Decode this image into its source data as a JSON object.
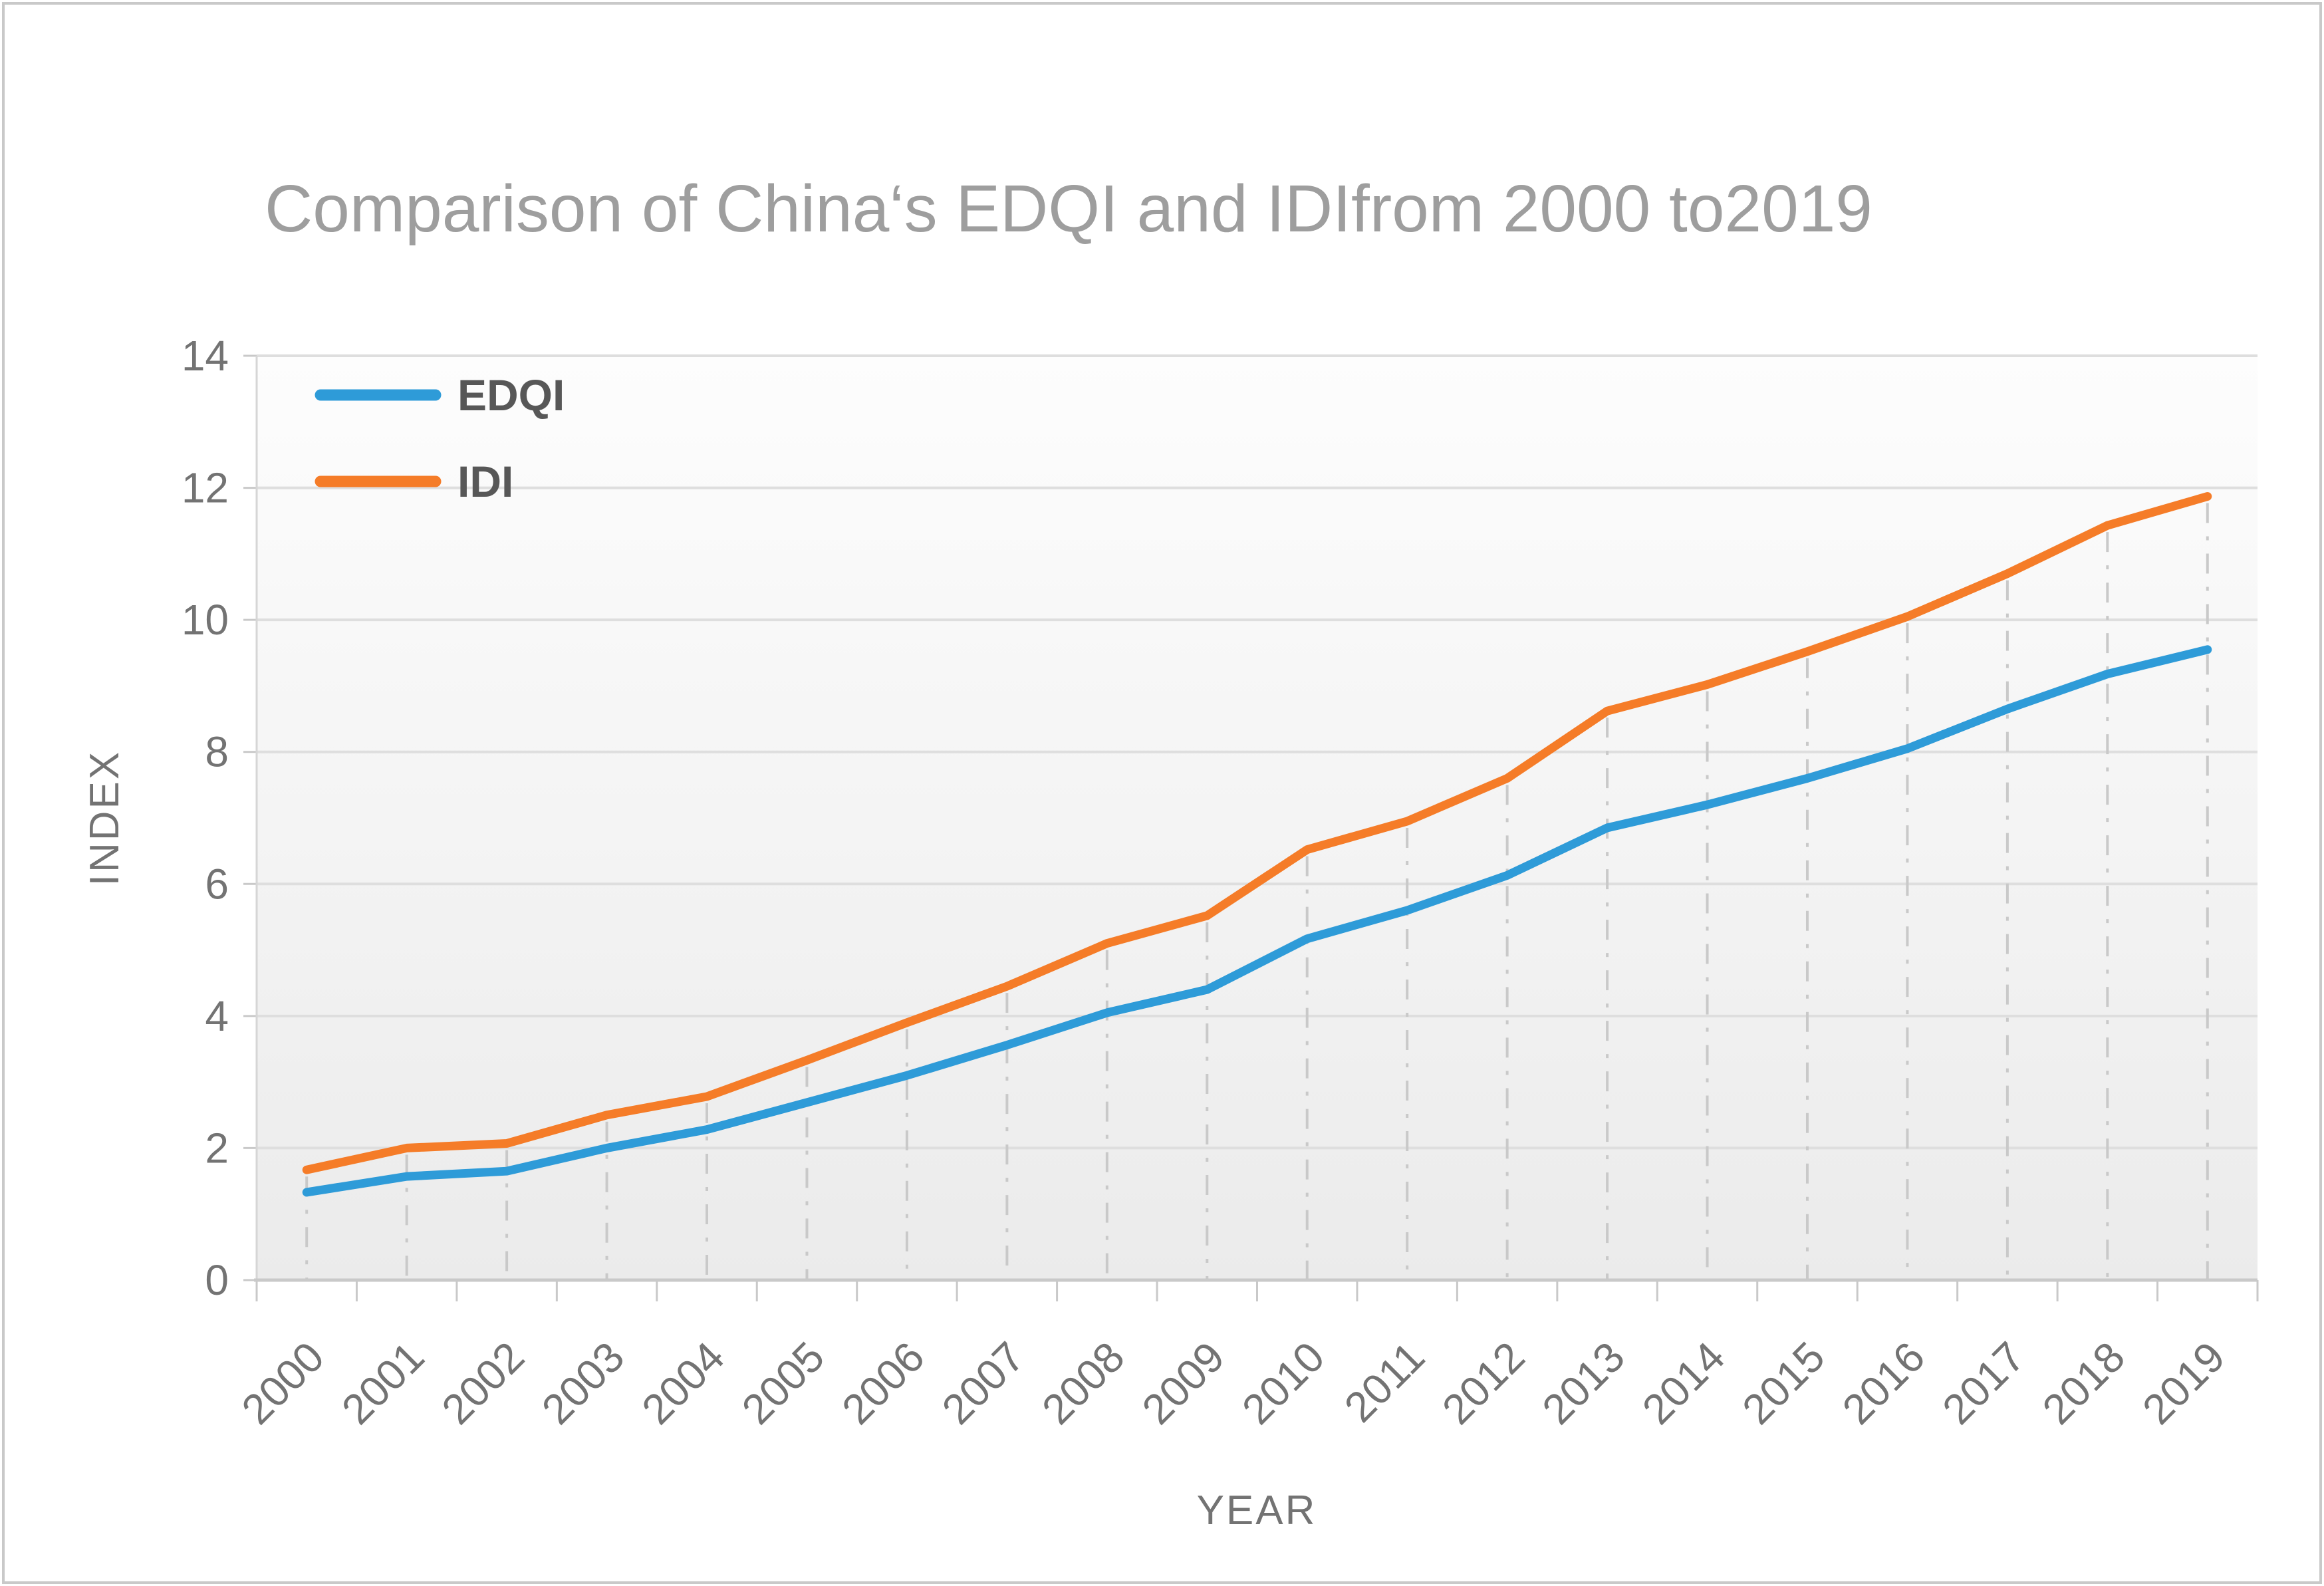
{
  "chart_data": {
    "type": "line",
    "title": "Comparison of China‘s EDQI and IDIfrom 2000 to2019",
    "xlabel": "YEAR",
    "ylabel": "INDEX",
    "categories": [
      "2000",
      "2001",
      "2002",
      "2003",
      "2004",
      "2005",
      "2006",
      "2007",
      "2008",
      "2009",
      "2010",
      "2011",
      "2012",
      "2013",
      "2014",
      "2015",
      "2016",
      "2017",
      "2018",
      "2019"
    ],
    "series": [
      {
        "name": "EDQI",
        "color": "#2E9BD8",
        "values": [
          1.33,
          1.57,
          1.65,
          2.0,
          2.28,
          2.69,
          3.1,
          3.56,
          4.05,
          4.4,
          5.17,
          5.6,
          6.13,
          6.85,
          7.2,
          7.6,
          8.05,
          8.65,
          9.18,
          9.55
        ]
      },
      {
        "name": "IDI",
        "color": "#F57C28",
        "values": [
          1.67,
          2.0,
          2.07,
          2.5,
          2.78,
          3.33,
          3.9,
          4.45,
          5.1,
          5.52,
          6.52,
          6.95,
          7.6,
          8.62,
          9.02,
          9.52,
          10.05,
          10.7,
          11.43,
          11.87
        ]
      }
    ],
    "ylim": [
      0,
      14
    ],
    "yticks": [
      0,
      2,
      4,
      6,
      8,
      10,
      12,
      14
    ],
    "grid": "horizontal solid gridlines; vertical dash-dot drop lines from IDI points to x-axis",
    "legend_position": "top-left inside plot"
  }
}
